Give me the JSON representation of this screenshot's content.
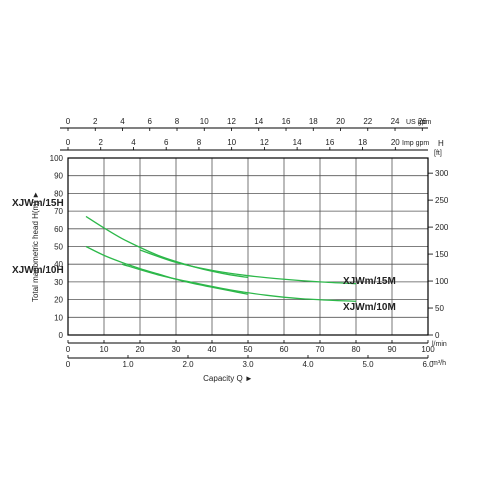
{
  "chart_data": {
    "type": "line",
    "ylabel": "Total manometric head H(m) ►",
    "xlabel": "Capacity Q ►",
    "y_left": {
      "unit": "",
      "lim": [
        0,
        100
      ],
      "ticks": [
        "0",
        "10",
        "20",
        "30",
        "40",
        "50",
        "60",
        "70",
        "80",
        "90",
        "100"
      ]
    },
    "y_right": {
      "unit": "H",
      "unit_sub": "[ft]",
      "ticks": [
        "0",
        "50",
        "100",
        "150",
        "200",
        "250",
        "300"
      ]
    },
    "x_lmin": {
      "unit": "l/min",
      "lim": [
        0,
        100
      ],
      "ticks": [
        "0",
        "10",
        "20",
        "30",
        "40",
        "50",
        "60",
        "70",
        "80",
        "90",
        "100"
      ]
    },
    "x_m3h": {
      "unit": "m³/h",
      "ticks": [
        "0",
        "1.0",
        "2.0",
        "3.0",
        "4.0",
        "5.0",
        "6.0"
      ]
    },
    "x_usgpm": {
      "unit": "US gpm",
      "ticks": [
        "0",
        "2",
        "4",
        "6",
        "8",
        "10",
        "12",
        "14",
        "16",
        "18",
        "20",
        "22",
        "24",
        "26"
      ]
    },
    "x_impgpm": {
      "unit": "Imp gpm",
      "ticks": [
        "0",
        "2",
        "4",
        "6",
        "8",
        "10",
        "12",
        "14",
        "16",
        "18",
        "20"
      ]
    },
    "series": [
      {
        "name": "XJWm/15H",
        "x": [
          5,
          10,
          15,
          20,
          25,
          30,
          35,
          40,
          45,
          50
        ],
        "y": [
          67,
          60.5,
          54.5,
          49.5,
          45,
          41.5,
          38.5,
          36,
          34,
          32.5
        ]
      },
      {
        "name": "XJWm/10H",
        "x": [
          5,
          10,
          15,
          20,
          25,
          30,
          35,
          40,
          45,
          50
        ],
        "y": [
          50,
          45,
          41,
          37.5,
          34.5,
          31.5,
          29,
          27,
          25,
          23
        ]
      },
      {
        "name": "XJWm/15M",
        "x": [
          20,
          30,
          40,
          50,
          60,
          70,
          80
        ],
        "y": [
          48,
          41,
          36.5,
          33.5,
          31.5,
          30,
          29
        ]
      },
      {
        "name": "XJWm/10M",
        "x": [
          15,
          25,
          35,
          45,
          55,
          65,
          80
        ],
        "y": [
          40,
          34,
          29.5,
          25.5,
          22.5,
          20.5,
          19
        ]
      }
    ],
    "colors": {
      "curves": "#2db84a",
      "grid": "#555555",
      "frame": "#000000"
    },
    "grid": true
  }
}
